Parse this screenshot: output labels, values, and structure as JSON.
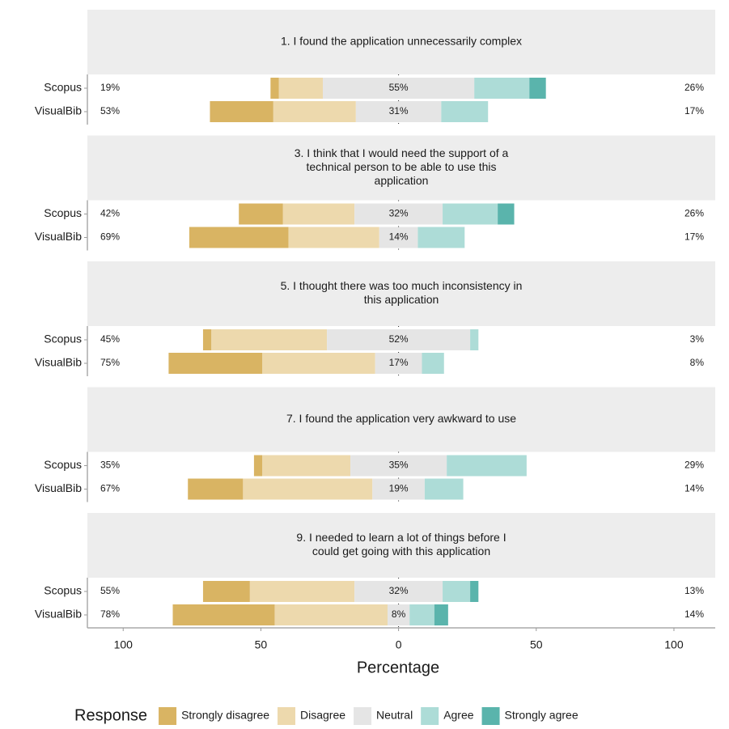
{
  "chart_data": {
    "type": "likert",
    "x_label": "Percentage",
    "xlim": [
      -113,
      115
    ],
    "xticks": [
      {
        "value": -100,
        "label": "100"
      },
      {
        "value": -50,
        "label": "50"
      },
      0,
      50,
      100
    ],
    "legend_title": "Response",
    "legend_position": "bottom",
    "responses": [
      {
        "name": "Strongly disagree",
        "color": "#D9B463"
      },
      {
        "name": "Disagree",
        "color": "#EDD9AD"
      },
      {
        "name": "Neutral",
        "color": "#E5E5E5"
      },
      {
        "name": "Agree",
        "color": "#ADDCD7"
      },
      {
        "name": "Strongly agree",
        "color": "#5AB4AC"
      }
    ],
    "panels": [
      {
        "title": [
          "1. I found the application unnecessarily complex"
        ],
        "rows": [
          {
            "name": "Scopus",
            "values": [
              3,
              16,
              55,
              20,
              6
            ],
            "labels": {
              "low": "19%",
              "neutral": "55%",
              "high": "26%"
            }
          },
          {
            "name": "VisualBib",
            "values": [
              23,
              30,
              31,
              17,
              0
            ],
            "labels": {
              "low": "53%",
              "neutral": "31%",
              "high": "17%"
            }
          }
        ]
      },
      {
        "title": [
          "3. I think that I would need the support of a",
          "technical person to be able to use this",
          "application"
        ],
        "rows": [
          {
            "name": "Scopus",
            "values": [
              16,
              26,
              32,
              20,
              6
            ],
            "labels": {
              "low": "42%",
              "neutral": "32%",
              "high": "26%"
            }
          },
          {
            "name": "VisualBib",
            "values": [
              36,
              33,
              14,
              17,
              0
            ],
            "labels": {
              "low": "69%",
              "neutral": "14%",
              "high": "17%"
            }
          }
        ]
      },
      {
        "title": [
          "5. I thought there was too much inconsistency in",
          "this application"
        ],
        "rows": [
          {
            "name": "Scopus",
            "values": [
              3,
              42,
              52,
              3,
              0
            ],
            "labels": {
              "low": "45%",
              "neutral": "52%",
              "high": "3%"
            }
          },
          {
            "name": "VisualBib",
            "values": [
              34,
              41,
              17,
              8,
              0
            ],
            "labels": {
              "low": "75%",
              "neutral": "17%",
              "high": "8%"
            }
          }
        ]
      },
      {
        "title": [
          "7. I found the application very awkward to use"
        ],
        "rows": [
          {
            "name": "Scopus",
            "values": [
              3,
              32,
              35,
              29,
              0
            ],
            "labels": {
              "low": "35%",
              "neutral": "35%",
              "high": "29%"
            }
          },
          {
            "name": "VisualBib",
            "values": [
              20,
              47,
              19,
              14,
              0
            ],
            "labels": {
              "low": "67%",
              "neutral": "19%",
              "high": "14%"
            }
          }
        ]
      },
      {
        "title": [
          "9. I needed to learn a lot of things before I",
          "could get going with this application"
        ],
        "rows": [
          {
            "name": "Scopus",
            "values": [
              17,
              38,
              32,
              10,
              3
            ],
            "labels": {
              "low": "55%",
              "neutral": "32%",
              "high": "13%"
            }
          },
          {
            "name": "VisualBib",
            "values": [
              37,
              41,
              8,
              9,
              5
            ],
            "labels": {
              "low": "78%",
              "neutral": "8%",
              "high": "14%"
            }
          }
        ]
      }
    ]
  }
}
